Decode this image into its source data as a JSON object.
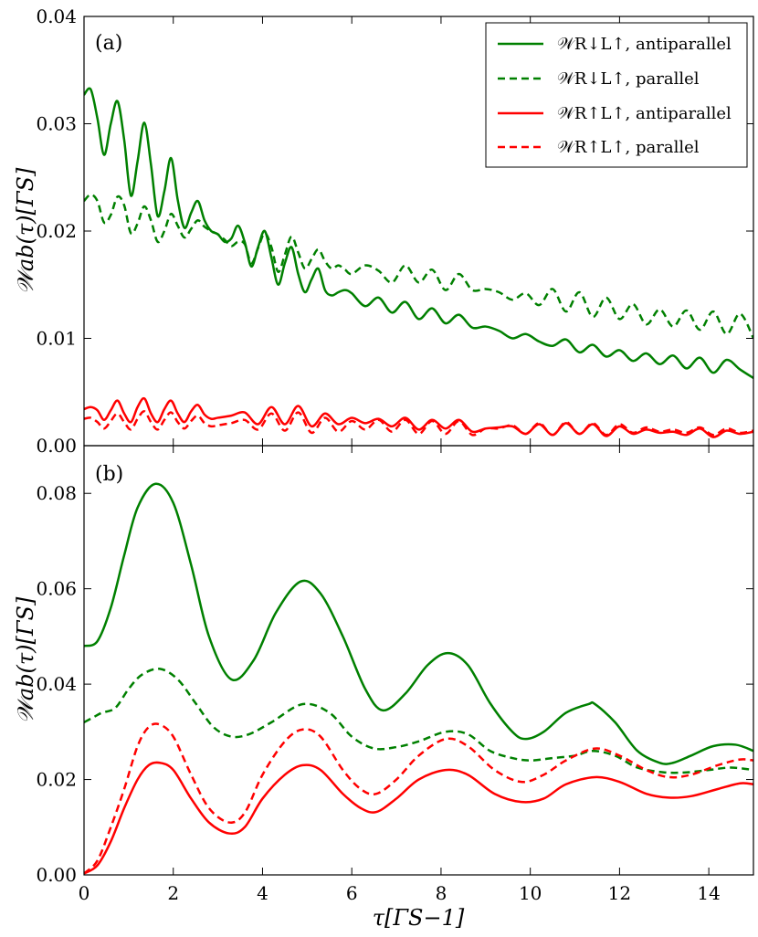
{
  "chart_data": [
    {
      "type": "line",
      "panel_label": "(a)",
      "ylabel": "𝒲ab(τ)[ΓS]",
      "xlim": [
        0,
        15
      ],
      "ylim": [
        0,
        0.04
      ],
      "xticks": [
        0,
        2,
        4,
        6,
        8,
        10,
        12,
        14
      ],
      "yticks": [
        0.0,
        0.01,
        0.02,
        0.03,
        0.04
      ],
      "ytick_labels": [
        "0.00",
        "0.01",
        "0.02",
        "0.03",
        "0.04"
      ],
      "legend_position": "top-right",
      "series": [
        {
          "name": "𝒲R↓L↑, antiparallel",
          "color": "#008000",
          "dash": "solid",
          "x": [
            0,
            0.15,
            0.3,
            0.45,
            0.6,
            0.75,
            0.9,
            1.05,
            1.2,
            1.35,
            1.5,
            1.65,
            1.8,
            1.95,
            2.1,
            2.25,
            2.4,
            2.55,
            2.7,
            2.85,
            3.0,
            3.15,
            3.3,
            3.45,
            3.6,
            3.75,
            3.9,
            4.05,
            4.2,
            4.35,
            4.5,
            4.65,
            4.8,
            4.95,
            5.1,
            5.25,
            5.4,
            5.55,
            5.7,
            5.85,
            6.0,
            6.3,
            6.6,
            6.9,
            7.2,
            7.5,
            7.8,
            8.1,
            8.4,
            8.7,
            9.0,
            9.3,
            9.6,
            9.9,
            10.2,
            10.5,
            10.8,
            11.1,
            11.4,
            11.7,
            12.0,
            12.3,
            12.6,
            12.9,
            13.2,
            13.5,
            13.8,
            14.1,
            14.4,
            14.7,
            15.0
          ],
          "values": [
            0.0327,
            0.0332,
            0.0305,
            0.0271,
            0.03,
            0.0321,
            0.0285,
            0.0233,
            0.0265,
            0.0301,
            0.0262,
            0.0214,
            0.0237,
            0.0268,
            0.0229,
            0.0203,
            0.0217,
            0.0228,
            0.021,
            0.02,
            0.0197,
            0.019,
            0.0193,
            0.0205,
            0.019,
            0.0167,
            0.0185,
            0.02,
            0.0175,
            0.015,
            0.017,
            0.0185,
            0.016,
            0.0143,
            0.0155,
            0.0165,
            0.0145,
            0.014,
            0.0143,
            0.0145,
            0.0142,
            0.013,
            0.0138,
            0.0124,
            0.0134,
            0.0118,
            0.0128,
            0.0114,
            0.0122,
            0.011,
            0.0111,
            0.0107,
            0.01,
            0.0104,
            0.0097,
            0.0093,
            0.0099,
            0.0087,
            0.0094,
            0.0083,
            0.0089,
            0.0079,
            0.0086,
            0.0076,
            0.0084,
            0.0072,
            0.0082,
            0.0068,
            0.008,
            0.0071,
            0.0063
          ]
        },
        {
          "name": "𝒲R↓L↑, parallel",
          "color": "#008000",
          "dash": "dashed",
          "x": [
            0,
            0.15,
            0.3,
            0.45,
            0.6,
            0.75,
            0.9,
            1.05,
            1.2,
            1.35,
            1.5,
            1.65,
            1.8,
            1.95,
            2.1,
            2.25,
            2.4,
            2.55,
            2.7,
            2.85,
            3.0,
            3.15,
            3.3,
            3.45,
            3.6,
            3.75,
            3.9,
            4.05,
            4.2,
            4.35,
            4.5,
            4.65,
            4.8,
            4.95,
            5.1,
            5.25,
            5.4,
            5.55,
            5.7,
            5.85,
            6.0,
            6.3,
            6.6,
            6.9,
            7.2,
            7.5,
            7.8,
            8.1,
            8.4,
            8.7,
            9.0,
            9.3,
            9.6,
            9.9,
            10.2,
            10.5,
            10.8,
            11.1,
            11.4,
            11.7,
            12.0,
            12.3,
            12.6,
            12.9,
            13.2,
            13.5,
            13.8,
            14.1,
            14.4,
            14.7,
            15.0
          ],
          "values": [
            0.0228,
            0.0234,
            0.0228,
            0.0208,
            0.0215,
            0.0232,
            0.0224,
            0.0198,
            0.0207,
            0.0223,
            0.021,
            0.019,
            0.02,
            0.0216,
            0.0205,
            0.0194,
            0.0202,
            0.021,
            0.0204,
            0.02,
            0.0197,
            0.0192,
            0.0186,
            0.019,
            0.0188,
            0.017,
            0.0184,
            0.0198,
            0.0185,
            0.0162,
            0.0178,
            0.0195,
            0.018,
            0.0165,
            0.0174,
            0.0183,
            0.0172,
            0.0165,
            0.0168,
            0.0164,
            0.016,
            0.0168,
            0.0163,
            0.0152,
            0.0168,
            0.0152,
            0.0164,
            0.0145,
            0.016,
            0.0145,
            0.0146,
            0.0143,
            0.0136,
            0.0142,
            0.0131,
            0.0146,
            0.0125,
            0.0143,
            0.012,
            0.0138,
            0.0118,
            0.0132,
            0.0113,
            0.0127,
            0.0111,
            0.0126,
            0.0108,
            0.0125,
            0.0104,
            0.0123,
            0.01
          ]
        },
        {
          "name": "𝒲R↑L↑, antiparallel",
          "color": "#ff0000",
          "dash": "solid",
          "x": [
            0,
            0.15,
            0.3,
            0.45,
            0.6,
            0.75,
            0.9,
            1.05,
            1.2,
            1.35,
            1.5,
            1.65,
            1.8,
            1.95,
            2.1,
            2.25,
            2.4,
            2.55,
            2.7,
            2.85,
            3.0,
            3.3,
            3.6,
            3.9,
            4.2,
            4.5,
            4.8,
            5.1,
            5.4,
            5.7,
            6.0,
            6.3,
            6.6,
            6.9,
            7.2,
            7.5,
            7.8,
            8.1,
            8.4,
            8.7,
            9.0,
            9.3,
            9.6,
            9.9,
            10.2,
            10.5,
            10.8,
            11.1,
            11.4,
            11.7,
            12.0,
            12.3,
            12.6,
            12.9,
            13.2,
            13.5,
            13.8,
            14.1,
            14.4,
            14.7,
            15.0
          ],
          "values": [
            0.0034,
            0.0036,
            0.0033,
            0.0024,
            0.0033,
            0.0042,
            0.003,
            0.0022,
            0.0036,
            0.0044,
            0.003,
            0.0022,
            0.0034,
            0.0042,
            0.003,
            0.0022,
            0.0032,
            0.0038,
            0.0029,
            0.0025,
            0.0026,
            0.0028,
            0.0031,
            0.002,
            0.0036,
            0.002,
            0.0037,
            0.0018,
            0.003,
            0.002,
            0.0026,
            0.0021,
            0.0025,
            0.0018,
            0.0026,
            0.0015,
            0.0024,
            0.0016,
            0.0024,
            0.0013,
            0.0016,
            0.0017,
            0.0018,
            0.0011,
            0.002,
            0.001,
            0.0021,
            0.0011,
            0.002,
            0.0009,
            0.0018,
            0.0011,
            0.0015,
            0.0012,
            0.0013,
            0.001,
            0.0016,
            0.0008,
            0.0014,
            0.0011,
            0.0013
          ]
        },
        {
          "name": "𝒲R↑L↑, parallel",
          "color": "#ff0000",
          "dash": "dashed",
          "x": [
            0,
            0.15,
            0.3,
            0.45,
            0.6,
            0.75,
            0.9,
            1.05,
            1.2,
            1.35,
            1.5,
            1.65,
            1.8,
            1.95,
            2.1,
            2.25,
            2.4,
            2.55,
            2.7,
            2.85,
            3.0,
            3.3,
            3.6,
            3.9,
            4.2,
            4.5,
            4.8,
            5.1,
            5.4,
            5.7,
            6.0,
            6.3,
            6.6,
            6.9,
            7.2,
            7.5,
            7.8,
            8.1,
            8.4,
            8.7,
            9.0,
            9.3,
            9.6,
            9.9,
            10.2,
            10.5,
            10.8,
            11.1,
            11.4,
            11.7,
            12.0,
            12.3,
            12.6,
            12.9,
            13.2,
            13.5,
            13.8,
            14.1,
            14.4,
            14.7,
            15.0
          ],
          "values": [
            0.0025,
            0.0026,
            0.0022,
            0.0016,
            0.0023,
            0.003,
            0.0022,
            0.0015,
            0.0025,
            0.0032,
            0.0022,
            0.0015,
            0.0024,
            0.0031,
            0.0022,
            0.0016,
            0.0023,
            0.0028,
            0.0021,
            0.0018,
            0.0019,
            0.0021,
            0.0024,
            0.0015,
            0.003,
            0.0014,
            0.0031,
            0.0012,
            0.0026,
            0.0013,
            0.0023,
            0.0015,
            0.0024,
            0.0013,
            0.0024,
            0.0011,
            0.0023,
            0.0011,
            0.0023,
            0.001,
            0.0016,
            0.0016,
            0.0019,
            0.0011,
            0.0021,
            0.001,
            0.0022,
            0.0011,
            0.0021,
            0.001,
            0.002,
            0.0012,
            0.0017,
            0.0013,
            0.0015,
            0.0012,
            0.0017,
            0.001,
            0.0016,
            0.0012,
            0.0014
          ]
        }
      ]
    },
    {
      "type": "line",
      "panel_label": "(b)",
      "ylabel": "𝒲ab(τ)[ΓS]",
      "xlabel": "τ[ΓS−1]",
      "xlim": [
        0,
        15
      ],
      "ylim": [
        0,
        0.09
      ],
      "xticks": [
        0,
        2,
        4,
        6,
        8,
        10,
        12,
        14
      ],
      "yticks": [
        0.0,
        0.02,
        0.04,
        0.06,
        0.08
      ],
      "ytick_labels": [
        "0.00",
        "0.02",
        "0.04",
        "0.06",
        "0.08"
      ],
      "series": [
        {
          "name": "𝒲R↓L↑, antiparallel",
          "color": "#008000",
          "dash": "solid",
          "x": [
            0,
            0.3,
            0.6,
            0.9,
            1.2,
            1.6,
            2.0,
            2.4,
            2.8,
            3.3,
            3.8,
            4.3,
            4.85,
            5.3,
            5.8,
            6.3,
            6.7,
            7.2,
            7.7,
            8.15,
            8.6,
            9.1,
            9.6,
            9.9,
            10.3,
            10.8,
            11.3,
            11.45,
            11.9,
            12.4,
            12.9,
            13.2,
            13.6,
            14.1,
            14.6,
            15.0
          ],
          "values": [
            0.048,
            0.049,
            0.056,
            0.067,
            0.077,
            0.082,
            0.078,
            0.065,
            0.05,
            0.041,
            0.045,
            0.055,
            0.0615,
            0.059,
            0.05,
            0.039,
            0.0345,
            0.038,
            0.044,
            0.0465,
            0.044,
            0.036,
            0.03,
            0.0285,
            0.03,
            0.034,
            0.0358,
            0.0358,
            0.032,
            0.026,
            0.0235,
            0.0235,
            0.025,
            0.027,
            0.0273,
            0.026
          ]
        },
        {
          "name": "𝒲R↓L↑, parallel",
          "color": "#008000",
          "dash": "dashed",
          "x": [
            0,
            0.2,
            0.4,
            0.7,
            1.0,
            1.3,
            1.7,
            2.1,
            2.5,
            2.9,
            3.3,
            3.7,
            4.2,
            4.9,
            5.5,
            6.0,
            6.5,
            7.0,
            7.5,
            8.1,
            8.6,
            9.1,
            9.6,
            10.0,
            10.5,
            11.0,
            11.4,
            11.9,
            12.4,
            13.0,
            13.5,
            14.0,
            14.5,
            15.0
          ],
          "values": [
            0.032,
            0.033,
            0.034,
            0.035,
            0.039,
            0.042,
            0.0432,
            0.041,
            0.036,
            0.031,
            0.029,
            0.0295,
            0.032,
            0.0358,
            0.034,
            0.029,
            0.0265,
            0.0268,
            0.028,
            0.03,
            0.0295,
            0.026,
            0.0245,
            0.024,
            0.0245,
            0.025,
            0.026,
            0.025,
            0.0225,
            0.0215,
            0.0215,
            0.022,
            0.0225,
            0.022
          ]
        },
        {
          "name": "𝒲R↑L↑, antiparallel",
          "color": "#ff0000",
          "dash": "solid",
          "x": [
            0,
            0.3,
            0.6,
            0.9,
            1.2,
            1.45,
            1.7,
            2.0,
            2.4,
            2.8,
            3.25,
            3.6,
            4.0,
            4.5,
            4.9,
            5.3,
            5.8,
            6.2,
            6.55,
            7.0,
            7.5,
            8.1,
            8.6,
            9.2,
            9.8,
            10.3,
            10.8,
            11.45,
            12.0,
            12.6,
            13.1,
            13.6,
            14.2,
            14.7,
            15.0
          ],
          "values": [
            0.0003,
            0.002,
            0.007,
            0.014,
            0.02,
            0.023,
            0.0235,
            0.022,
            0.016,
            0.011,
            0.0087,
            0.01,
            0.016,
            0.021,
            0.023,
            0.022,
            0.017,
            0.014,
            0.0132,
            0.016,
            0.02,
            0.022,
            0.021,
            0.017,
            0.0153,
            0.016,
            0.019,
            0.0205,
            0.0195,
            0.017,
            0.0162,
            0.0165,
            0.018,
            0.0192,
            0.019
          ]
        },
        {
          "name": "𝒲R↑L↑, parallel",
          "color": "#ff0000",
          "dash": "dashed",
          "x": [
            0,
            0.3,
            0.6,
            0.9,
            1.2,
            1.45,
            1.7,
            2.0,
            2.4,
            2.8,
            3.25,
            3.6,
            4.0,
            4.5,
            4.9,
            5.3,
            5.8,
            6.2,
            6.55,
            7.0,
            7.5,
            8.1,
            8.6,
            9.2,
            9.8,
            10.3,
            10.8,
            11.45,
            12.0,
            12.6,
            13.1,
            13.6,
            14.2,
            14.7,
            15.0
          ],
          "values": [
            0.0003,
            0.003,
            0.01,
            0.018,
            0.027,
            0.031,
            0.0315,
            0.029,
            0.021,
            0.014,
            0.011,
            0.013,
            0.021,
            0.028,
            0.0305,
            0.029,
            0.022,
            0.018,
            0.017,
            0.02,
            0.025,
            0.0285,
            0.027,
            0.022,
            0.0195,
            0.021,
            0.024,
            0.0265,
            0.025,
            0.022,
            0.0205,
            0.021,
            0.023,
            0.0242,
            0.024
          ]
        }
      ]
    }
  ]
}
